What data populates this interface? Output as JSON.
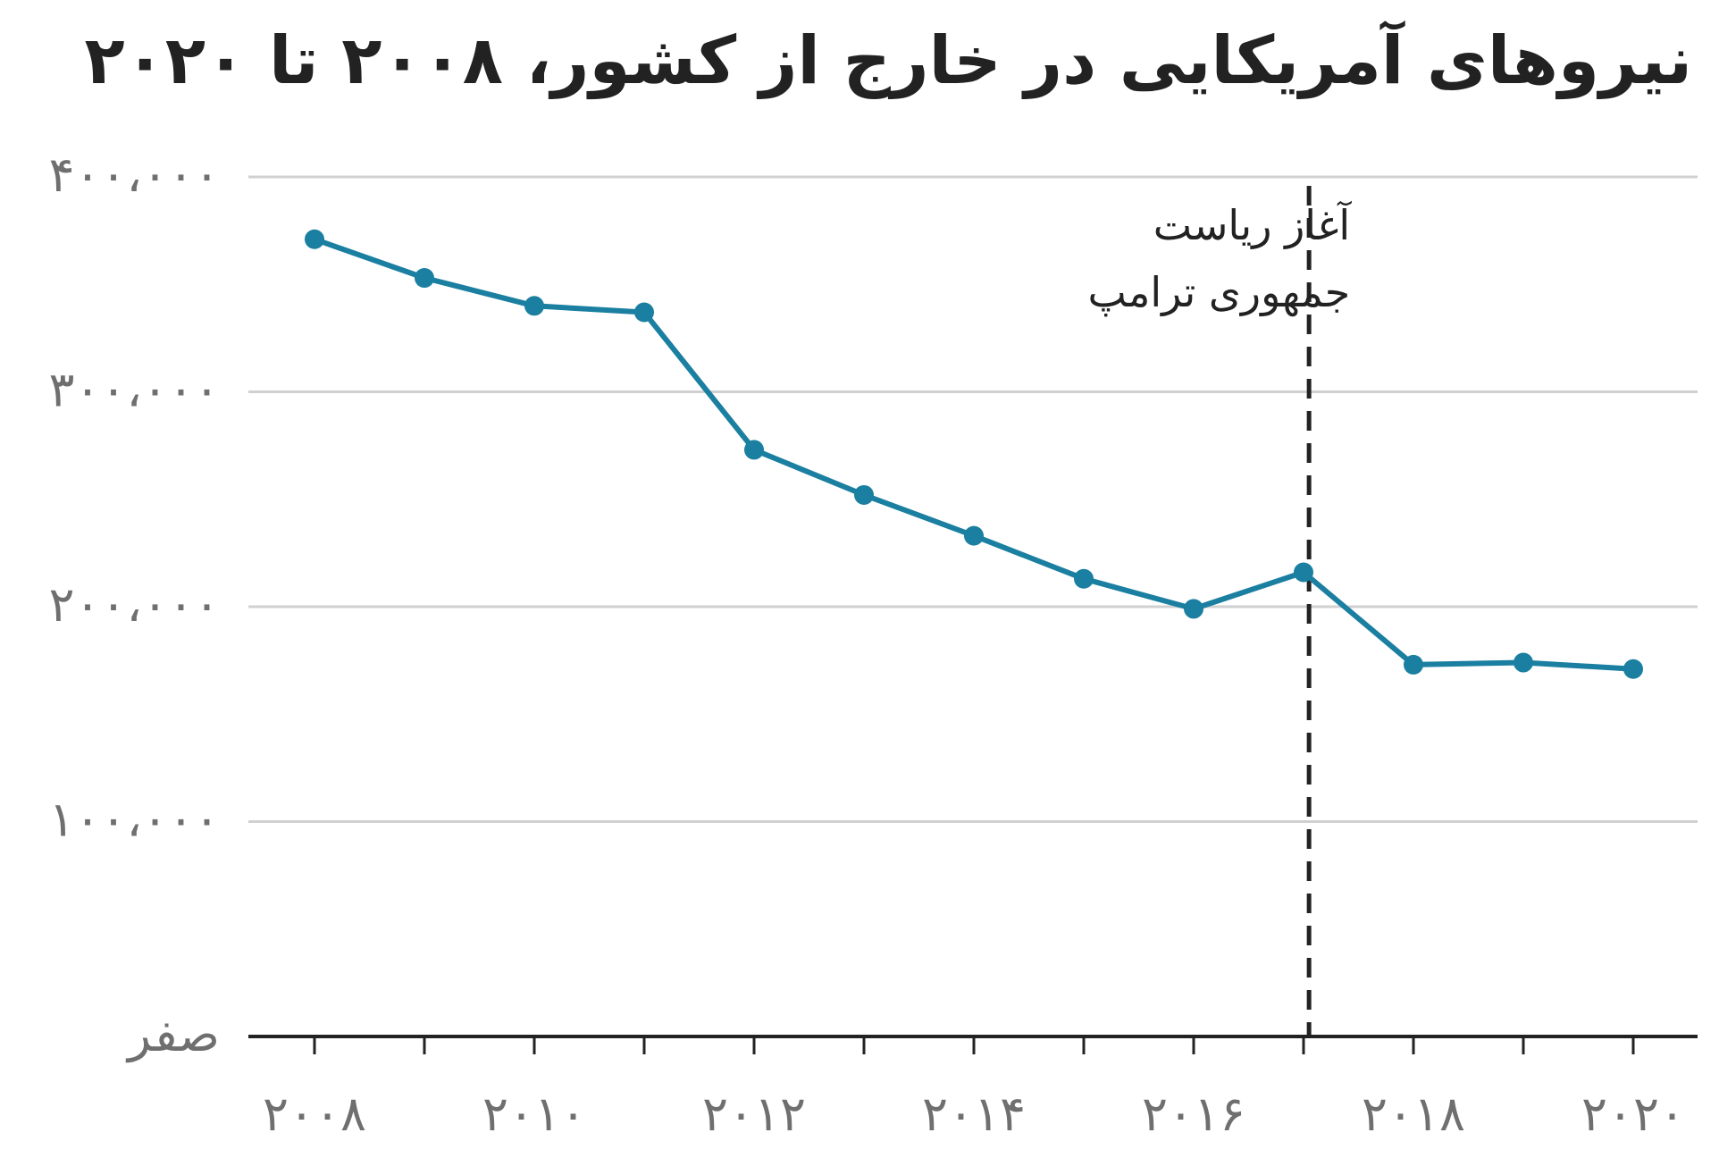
{
  "chart_data": {
    "type": "line",
    "title": "نیروهای آمریکایی در خارج از کشور، ۲۰۰۸ تا ۲۰۲۰",
    "xlabel": "",
    "ylabel": "",
    "x": [
      2008,
      2009,
      2010,
      2011,
      2012,
      2013,
      2014,
      2015,
      2016,
      2017,
      2018,
      2019,
      2020
    ],
    "series": [
      {
        "values": [
          371000,
          353000,
          340000,
          337000,
          273000,
          252000,
          233000,
          213000,
          199000,
          216000,
          173000,
          174000,
          171000
        ]
      }
    ],
    "xlim": [
      2008,
      2020
    ],
    "ylim": [
      0,
      400000
    ],
    "x_ticks": [
      2008,
      2010,
      2012,
      2014,
      2016,
      2018,
      2020
    ],
    "x_tick_labels": [
      "۲۰۰۸",
      "۲۰۱۰",
      "۲۰۱۲",
      "۲۰۱۴",
      "۲۰۱۶",
      "۲۰۱۸",
      "۲۰۲۰"
    ],
    "y_ticks": [
      0,
      100000,
      200000,
      300000,
      400000
    ],
    "y_tick_labels": [
      "صفر",
      "۱۰۰،۰۰۰",
      "۲۰۰،۰۰۰",
      "۳۰۰،۰۰۰",
      "۴۰۰،۰۰۰"
    ],
    "grid": true,
    "line_color": "#1a7fa0",
    "gridline_color": "#d0d0d0",
    "annotations": [
      {
        "x": 2017.05,
        "style": "dashed-vertical-line",
        "text_lines": [
          "آغاز ریاست",
          "جمهوری ترامپ"
        ]
      }
    ]
  }
}
